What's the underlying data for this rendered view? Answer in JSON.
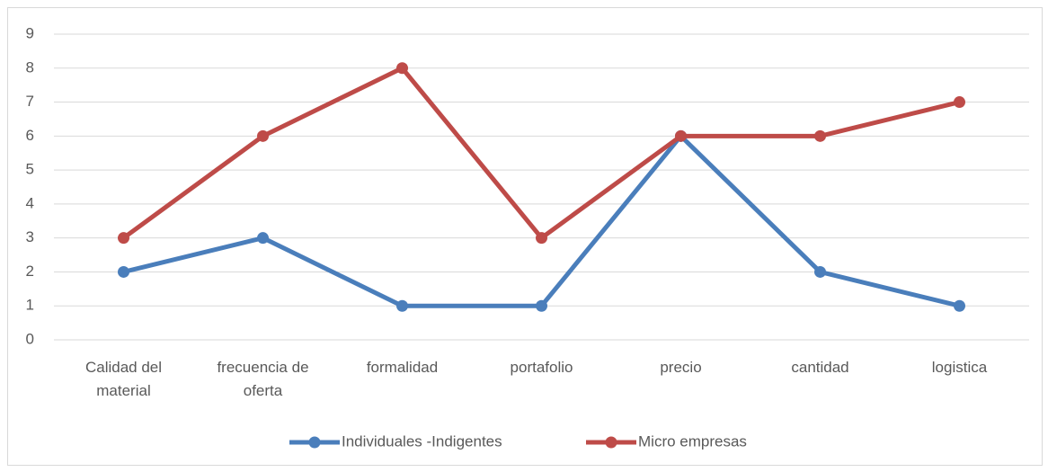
{
  "chart_data": {
    "type": "line",
    "categories": [
      "Calidad del material",
      "frecuencia de oferta",
      "formalidad",
      "portafolio",
      "precio",
      "cantidad",
      "logistica"
    ],
    "series": [
      {
        "name": "Individuales -Indigentes",
        "color": "#4a7ebb",
        "values": [
          2,
          3,
          1,
          1,
          6,
          2,
          1
        ]
      },
      {
        "name": "Micro empresas",
        "color": "#be4b48",
        "values": [
          3,
          6,
          8,
          3,
          6,
          6,
          7
        ]
      }
    ],
    "ylim": [
      0,
      9
    ],
    "yticks": [
      0,
      1,
      2,
      3,
      4,
      5,
      6,
      7,
      8,
      9
    ],
    "grid": true,
    "legend": "bottom"
  }
}
